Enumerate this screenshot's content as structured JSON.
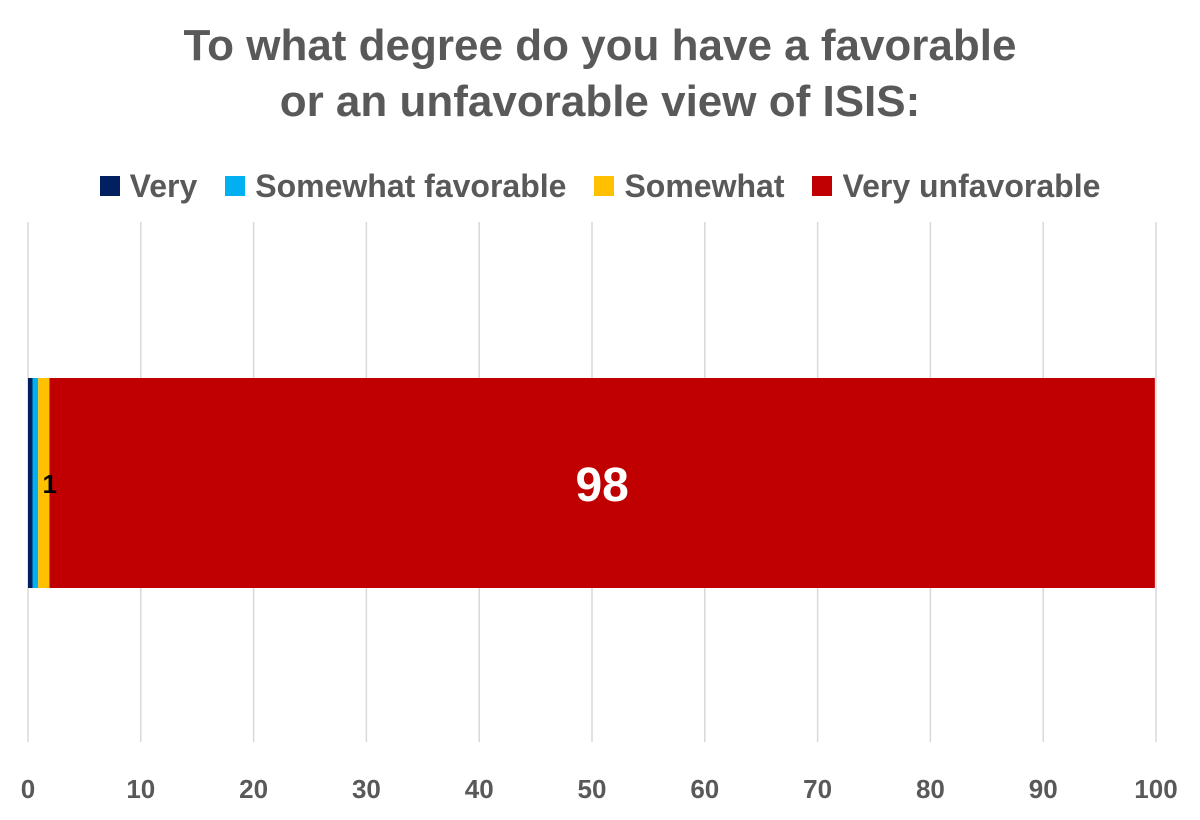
{
  "chart_data": {
    "type": "bar",
    "orientation": "horizontal",
    "stacked": true,
    "title_lines": [
      "To what degree do you have a favorable",
      "or an unfavorable view of ISIS:"
    ],
    "categories": [
      ""
    ],
    "series": [
      {
        "name": "Very",
        "values": [
          0.4
        ],
        "color": "#002060",
        "label": ""
      },
      {
        "name": "Somewhat favorable",
        "values": [
          0.5
        ],
        "color": "#00B0F0",
        "label": ""
      },
      {
        "name": "Somewhat",
        "values": [
          1
        ],
        "color": "#FFC000",
        "label": "1"
      },
      {
        "name": "Very unfavorable",
        "values": [
          98
        ],
        "color": "#C00000",
        "label": "98"
      }
    ],
    "xlim": [
      0,
      100
    ],
    "xticks": [
      "0",
      "10",
      "20",
      "30",
      "40",
      "50",
      "60",
      "70",
      "80",
      "90",
      "100"
    ],
    "grid": true,
    "legend_position": "top"
  }
}
